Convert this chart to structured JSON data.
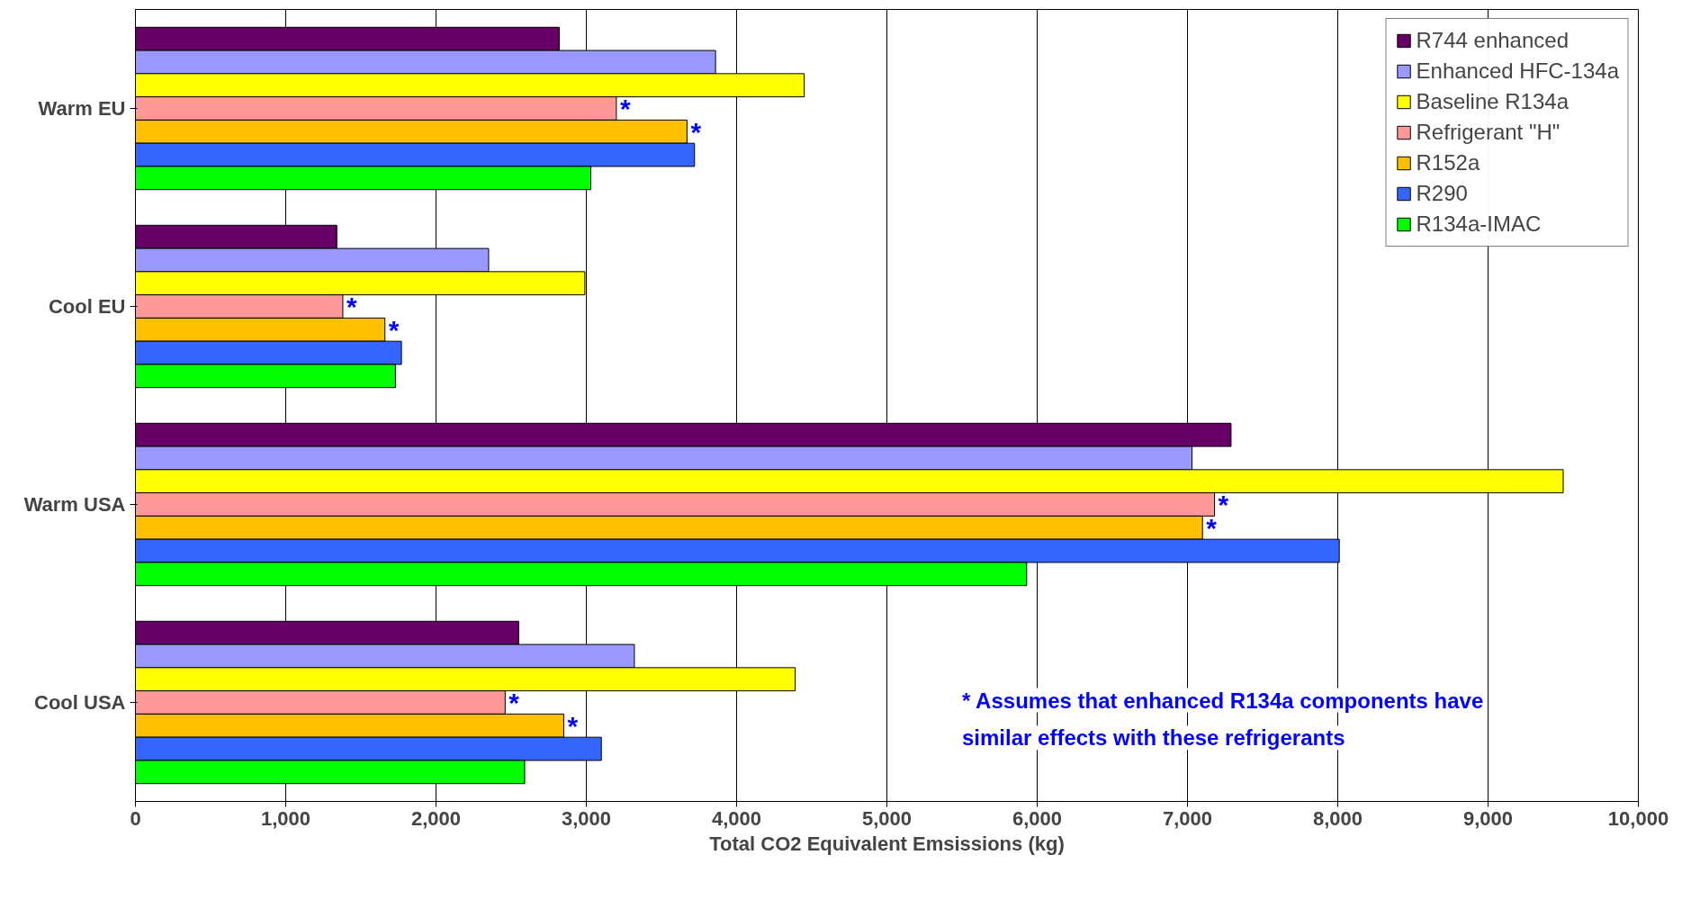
{
  "chart_data": {
    "type": "bar",
    "orientation": "horizontal",
    "xlabel": "Total CO2 Equivalent Emsissions (kg)",
    "categories": [
      "Warm EU",
      "Cool EU",
      "Warm USA",
      "Cool USA"
    ],
    "series": [
      {
        "name": "R744 enhanced",
        "color": "#660066",
        "values": [
          2820,
          1340,
          7290,
          2550
        ]
      },
      {
        "name": "Enhanced HFC-134a",
        "color": "#9999ff",
        "values": [
          3860,
          2350,
          7030,
          3320
        ]
      },
      {
        "name": "Baseline R134a",
        "color": "#ffff00",
        "values": [
          4450,
          2990,
          9500,
          4390
        ]
      },
      {
        "name": "Refrigerant \"H\"",
        "color": "#ff9999",
        "values": [
          3200,
          1380,
          7180,
          2460
        ],
        "value_labels": [
          "*",
          "*",
          "*",
          "*"
        ]
      },
      {
        "name": "R152a",
        "color": "#ffc000",
        "values": [
          3670,
          1660,
          7100,
          2850
        ],
        "value_labels": [
          "*",
          "*",
          "*",
          "*"
        ]
      },
      {
        "name": "R290",
        "color": "#3366ff",
        "values": [
          3720,
          1770,
          8010,
          3100
        ]
      },
      {
        "name": "R134a-IMAC",
        "color": "#00ff00",
        "values": [
          3030,
          1730,
          5930,
          2590
        ]
      }
    ],
    "xlim": [
      0,
      10000
    ],
    "xticks": [
      0,
      {
        "value": 1000,
        "label": "1,000"
      },
      {
        "value": 2000,
        "label": "2,000"
      },
      {
        "value": 3000,
        "label": "3,000"
      },
      {
        "value": 4000,
        "label": "4,000"
      },
      {
        "value": 5000,
        "label": "5,000"
      },
      {
        "value": 6000,
        "label": "6,000"
      },
      {
        "value": 7000,
        "label": "7,000"
      },
      {
        "value": 8000,
        "label": "8,000"
      },
      {
        "value": 9000,
        "label": "9,000"
      },
      {
        "value": 10000,
        "label": "10,000"
      }
    ],
    "grid": "x",
    "legend": "top right",
    "annotations": [
      "* Assumes that enhanced R134a components have similar effects with these refrigerants"
    ]
  }
}
